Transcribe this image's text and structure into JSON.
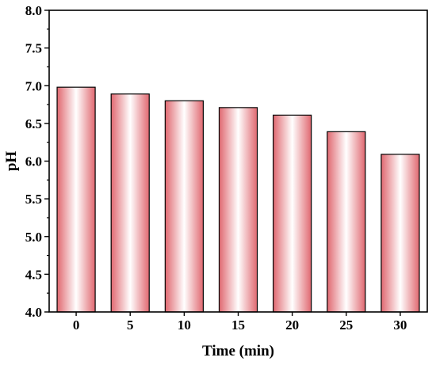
{
  "chart_data": {
    "type": "bar",
    "title": "",
    "xlabel": "Time (min)",
    "ylabel": "pH",
    "categories": [
      "0",
      "5",
      "10",
      "15",
      "20",
      "25",
      "30"
    ],
    "values": [
      6.98,
      6.89,
      6.8,
      6.71,
      6.61,
      6.39,
      6.09
    ],
    "ylim": [
      4.0,
      8.0
    ],
    "y_ticks": [
      "4.0",
      "4.5",
      "5.0",
      "5.5",
      "6.0",
      "6.5",
      "7.0",
      "7.5",
      "8.0"
    ],
    "grid": false,
    "legend": "none",
    "colors": {
      "bar_edge": "#e06870",
      "bar_center": "#ffffff",
      "outline": "#000000"
    }
  }
}
